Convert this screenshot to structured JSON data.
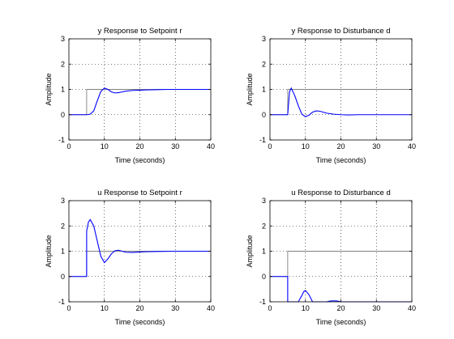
{
  "chart_data": [
    {
      "type": "line",
      "title": "y Response to Setpoint r",
      "xlabel": "Time (seconds)",
      "ylabel": "Amplitude",
      "xlim": [
        0,
        40
      ],
      "ylim": [
        -1,
        3
      ],
      "xticks": [
        "0",
        "10",
        "20",
        "30",
        "40"
      ],
      "yticks": [
        "-1",
        "0",
        "1",
        "2",
        "3"
      ],
      "grid": true,
      "series": [
        {
          "color": "#808080",
          "x": [
            0,
            5,
            5,
            40
          ],
          "y": [
            0,
            0,
            1,
            1
          ]
        },
        {
          "color": "#0000ff",
          "x": [
            0,
            5,
            6,
            7,
            8,
            9,
            10,
            11,
            12,
            13,
            14,
            15,
            16,
            18,
            20,
            22,
            25,
            28,
            32,
            36,
            40
          ],
          "y": [
            0,
            0,
            0.02,
            0.15,
            0.55,
            0.92,
            1.05,
            1.0,
            0.9,
            0.86,
            0.87,
            0.9,
            0.93,
            0.96,
            0.97,
            0.98,
            0.99,
            1.0,
            1.0,
            1.0,
            1.0
          ]
        }
      ]
    },
    {
      "type": "line",
      "title": "y Response to Disturbance d",
      "xlabel": "Time (seconds)",
      "ylabel": "Amplitude",
      "xlim": [
        0,
        40
      ],
      "ylim": [
        -1,
        3
      ],
      "xticks": [
        "0",
        "10",
        "20",
        "30",
        "40"
      ],
      "yticks": [
        "-1",
        "0",
        "1",
        "2",
        "3"
      ],
      "grid": true,
      "series": [
        {
          "color": "#808080",
          "x": [
            0,
            5,
            5,
            40
          ],
          "y": [
            0,
            0,
            1,
            1
          ]
        },
        {
          "color": "#0000ff",
          "x": [
            0,
            5,
            5.5,
            6,
            7,
            8,
            9,
            10,
            11,
            12,
            13,
            14,
            15,
            16,
            18,
            20,
            22,
            25,
            30,
            35,
            40
          ],
          "y": [
            0,
            0,
            0.9,
            1.05,
            0.75,
            0.35,
            0.02,
            -0.08,
            -0.02,
            0.1,
            0.15,
            0.14,
            0.1,
            0.06,
            0.02,
            0.0,
            -0.01,
            0.0,
            0.0,
            0.0,
            0.0
          ]
        }
      ]
    },
    {
      "type": "line",
      "title": "u Response to Setpoint r",
      "xlabel": "Time (seconds)",
      "ylabel": "Amplitude",
      "xlim": [
        0,
        40
      ],
      "ylim": [
        -1,
        3
      ],
      "xticks": [
        "0",
        "10",
        "20",
        "30",
        "40"
      ],
      "yticks": [
        "-1",
        "0",
        "1",
        "2",
        "3"
      ],
      "grid": true,
      "series": [
        {
          "color": "#808080",
          "x": [
            0,
            5,
            5,
            40
          ],
          "y": [
            0,
            0,
            1,
            1
          ]
        },
        {
          "color": "#0000ff",
          "x": [
            0,
            5,
            5,
            5.5,
            6,
            7,
            8,
            9,
            10,
            11,
            12,
            13,
            14,
            15,
            16,
            18,
            20,
            22,
            25,
            30,
            35,
            40
          ],
          "y": [
            0,
            0,
            1.8,
            2.15,
            2.25,
            2.0,
            1.4,
            0.8,
            0.55,
            0.7,
            0.9,
            1.02,
            1.04,
            1.0,
            0.96,
            0.95,
            0.97,
            0.98,
            0.99,
            1.0,
            1.0,
            1.0
          ]
        }
      ]
    },
    {
      "type": "line",
      "title": "u Response to Disturbance d",
      "xlabel": "Time (seconds)",
      "ylabel": "Amplitude",
      "xlim": [
        0,
        40
      ],
      "ylim": [
        -1,
        3
      ],
      "xticks": [
        "0",
        "10",
        "20",
        "30",
        "40"
      ],
      "yticks": [
        "-1",
        "0",
        "1",
        "2",
        "3"
      ],
      "grid": true,
      "series": [
        {
          "color": "#808080",
          "x": [
            0,
            5,
            5,
            40
          ],
          "y": [
            0,
            0,
            1,
            1
          ]
        },
        {
          "color": "#0000ff",
          "x": [
            0,
            5,
            5,
            6,
            7,
            8,
            9,
            9.5,
            10,
            11,
            12,
            13,
            14,
            15,
            16,
            17,
            18,
            19,
            20,
            22,
            25,
            30,
            40
          ],
          "y": [
            0,
            0,
            -1.05,
            -1.05,
            -1.05,
            -1.05,
            -0.75,
            -0.6,
            -0.55,
            -0.72,
            -1.05,
            -1.05,
            -1.05,
            -1.05,
            -1.0,
            -0.97,
            -0.96,
            -0.97,
            -1.0,
            -1.01,
            -1.0,
            -1.0,
            -1.0
          ]
        }
      ]
    }
  ]
}
